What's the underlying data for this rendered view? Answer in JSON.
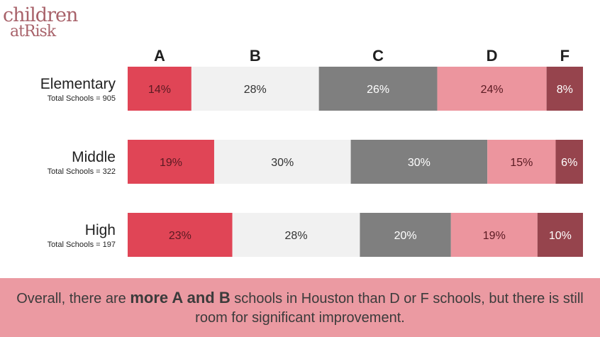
{
  "logo": {
    "line1": "children",
    "line2": "atRisk"
  },
  "chart_data": {
    "type": "bar",
    "stacked": true,
    "orientation": "horizontal",
    "series_names": [
      "A",
      "B",
      "C",
      "D",
      "F"
    ],
    "colors": [
      "#e04556",
      "#f1f1f1",
      "#7f7f7f",
      "#ec959e",
      "#96444d"
    ],
    "label_colors": [
      "#5a1a22",
      "#333333",
      "#ffffff",
      "#5a1a22",
      "#ffffff"
    ],
    "rows": [
      {
        "label": "Elementary",
        "sublabel": "Total Schools = 905",
        "values": [
          14,
          28,
          26,
          24,
          8
        ]
      },
      {
        "label": "Middle",
        "sublabel": "Total Schools = 322",
        "values": [
          19,
          30,
          30,
          15,
          6
        ]
      },
      {
        "label": "High",
        "sublabel": "Total Schools = 197",
        "values": [
          23,
          28,
          20,
          19,
          10
        ]
      }
    ],
    "value_suffix": "%"
  },
  "banner": {
    "pre": "Overall, there are ",
    "bold": "more A and B",
    "post": " schools in Houston than D or F schools, but there is still room for significant improvement."
  }
}
